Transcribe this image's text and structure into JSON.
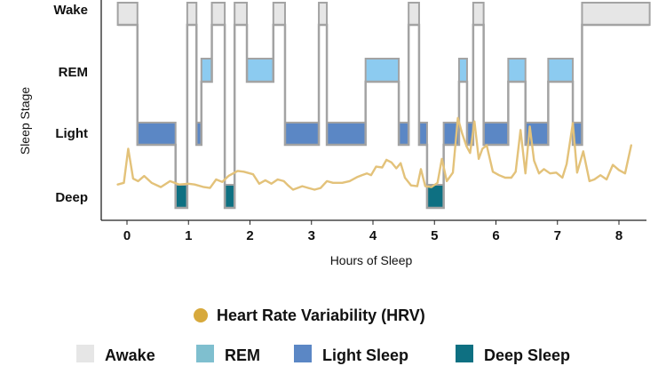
{
  "chart_data": {
    "type": "line",
    "xlabel": "Hours of Sleep",
    "ylabel": "Sleep Stage",
    "xlim": [
      -0.15,
      8.5
    ],
    "x_ticks": [
      "0",
      "1",
      "2",
      "3",
      "4",
      "5",
      "6",
      "7",
      "8"
    ],
    "y_categories": [
      "Deep",
      "Light",
      "REM",
      "Wake"
    ],
    "grid": false,
    "legend": {
      "placement": "bottom",
      "line_entry": "Heart Rate Variability (HRV)",
      "stage_entries": [
        "Awake",
        "REM",
        "Light Sleep",
        "Deep Sleep"
      ]
    },
    "colors": {
      "awake": "#e6e6e6",
      "rem": "#8ccbf0",
      "light": "#5b87c5",
      "deep": "#0e7082",
      "hypnogram_line": "#a3a3a3",
      "hrv": "#e3c27a",
      "hrv_marker": "#d7a93c",
      "legend_rem": "#7fbfcf"
    },
    "hypnogram": [
      {
        "stage": "Wake",
        "start": -0.15,
        "end": 0.17
      },
      {
        "stage": "Light",
        "start": 0.17,
        "end": 0.79
      },
      {
        "stage": "Deep",
        "start": 0.79,
        "end": 0.98
      },
      {
        "stage": "Wake",
        "start": 0.98,
        "end": 1.13
      },
      {
        "stage": "Light",
        "start": 1.13,
        "end": 1.21
      },
      {
        "stage": "REM",
        "start": 1.21,
        "end": 1.38
      },
      {
        "stage": "Wake",
        "start": 1.38,
        "end": 1.59
      },
      {
        "stage": "Deep",
        "start": 1.59,
        "end": 1.75
      },
      {
        "stage": "Wake",
        "start": 1.75,
        "end": 1.95
      },
      {
        "stage": "REM",
        "start": 1.95,
        "end": 2.38
      },
      {
        "stage": "Wake",
        "start": 2.38,
        "end": 2.57
      },
      {
        "stage": "Light",
        "start": 2.57,
        "end": 3.12
      },
      {
        "stage": "Wake",
        "start": 3.12,
        "end": 3.25
      },
      {
        "stage": "Light",
        "start": 3.25,
        "end": 3.88
      },
      {
        "stage": "REM",
        "start": 3.88,
        "end": 4.42
      },
      {
        "stage": "Light",
        "start": 4.42,
        "end": 4.58
      },
      {
        "stage": "Wake",
        "start": 4.58,
        "end": 4.75
      },
      {
        "stage": "Light",
        "start": 4.75,
        "end": 4.88
      },
      {
        "stage": "Deep",
        "start": 4.88,
        "end": 5.15
      },
      {
        "stage": "Light",
        "start": 5.15,
        "end": 5.4
      },
      {
        "stage": "REM",
        "start": 5.4,
        "end": 5.53
      },
      {
        "stage": "Light",
        "start": 5.53,
        "end": 5.63
      },
      {
        "stage": "Wake",
        "start": 5.63,
        "end": 5.8
      },
      {
        "stage": "Light",
        "start": 5.8,
        "end": 6.2
      },
      {
        "stage": "REM",
        "start": 6.2,
        "end": 6.48
      },
      {
        "stage": "Light",
        "start": 6.48,
        "end": 6.85
      },
      {
        "stage": "REM",
        "start": 6.85,
        "end": 7.25
      },
      {
        "stage": "Light",
        "start": 7.25,
        "end": 7.4
      },
      {
        "stage": "Wake",
        "start": 7.4,
        "end": 8.5
      }
    ],
    "hrv": {
      "name": "Heart Rate Variability (HRV)",
      "y_range": [
        0,
        100
      ],
      "x": [
        -0.15,
        -0.05,
        0.02,
        0.1,
        0.18,
        0.28,
        0.4,
        0.55,
        0.7,
        0.85,
        1.0,
        1.1,
        1.25,
        1.35,
        1.45,
        1.55,
        1.65,
        1.8,
        1.9,
        2.05,
        2.15,
        2.25,
        2.35,
        2.45,
        2.55,
        2.62,
        2.7,
        2.85,
        2.95,
        3.05,
        3.15,
        3.25,
        3.35,
        3.5,
        3.62,
        3.75,
        3.82,
        3.9,
        3.97,
        4.05,
        4.15,
        4.22,
        4.3,
        4.38,
        4.45,
        4.52,
        4.62,
        4.72,
        4.78,
        4.85,
        4.95,
        5.05,
        5.12,
        5.2,
        5.3,
        5.38,
        5.45,
        5.52,
        5.58,
        5.65,
        5.72,
        5.78,
        5.85,
        5.95,
        6.05,
        6.15,
        6.25,
        6.32,
        6.4,
        6.48,
        6.55,
        6.62,
        6.7,
        6.78,
        6.88,
        6.98,
        7.08,
        7.15,
        7.25,
        7.32,
        7.42,
        7.52,
        7.6,
        7.7,
        7.8,
        7.9,
        8.0,
        8.1,
        8.2
      ],
      "values": [
        18,
        20,
        60,
        25,
        22,
        28,
        20,
        15,
        22,
        18,
        19,
        18,
        15,
        14,
        24,
        21,
        28,
        34,
        33,
        30,
        19,
        23,
        19,
        24,
        22,
        17,
        12,
        16,
        14,
        12,
        14,
        22,
        20,
        20,
        22,
        27,
        29,
        31,
        29,
        39,
        38,
        47,
        44,
        37,
        43,
        26,
        17,
        16,
        36,
        16,
        15,
        20,
        48,
        22,
        32,
        96,
        78,
        63,
        55,
        92,
        48,
        60,
        64,
        33,
        29,
        26,
        26,
        33,
        82,
        31,
        86,
        46,
        31,
        36,
        31,
        32,
        26,
        42,
        90,
        32,
        57,
        22,
        24,
        29,
        24,
        41,
        35,
        31,
        64
      ]
    }
  }
}
